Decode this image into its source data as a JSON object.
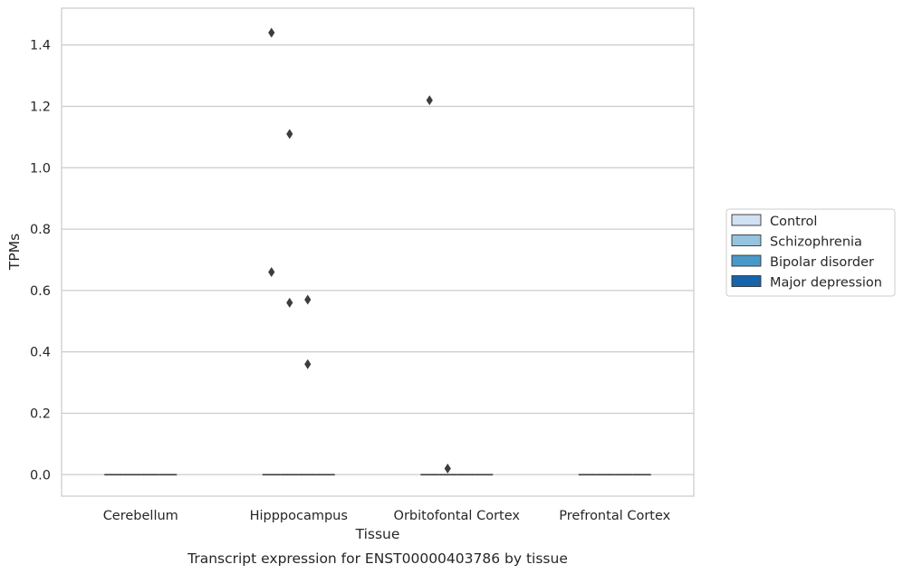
{
  "chart_data": {
    "type": "boxplot",
    "xlabel": "Tissue",
    "ylabel": "TPMs",
    "caption": "Transcript expression for ENST00000403786 by tissue",
    "categories": [
      "Cerebellum",
      "Hipppocampus",
      "Orbitofontal Cortex",
      "Prefrontal Cortex"
    ],
    "ylim": [
      -0.07,
      1.52
    ],
    "yticks": [
      "0.0",
      "0.2",
      "0.4",
      "0.6",
      "0.8",
      "1.0",
      "1.2",
      "1.4"
    ],
    "grid": "horizontal",
    "legend_position": "right",
    "series": [
      {
        "name": "Control",
        "color": "#d0e1f2"
      },
      {
        "name": "Schizophrenia",
        "color": "#94c4df"
      },
      {
        "name": "Bipolar disorder",
        "color": "#4a98c9"
      },
      {
        "name": "Major depression",
        "color": "#1764ab"
      }
    ],
    "boxes": [
      {
        "category": 0,
        "series": 0,
        "median": 0.0
      },
      {
        "category": 0,
        "series": 1,
        "median": 0.0
      },
      {
        "category": 0,
        "series": 2,
        "median": 0.0
      },
      {
        "category": 0,
        "series": 3,
        "median": 0.0
      },
      {
        "category": 1,
        "series": 0,
        "median": 0.0,
        "outliers": [
          1.44,
          0.66
        ]
      },
      {
        "category": 1,
        "series": 1,
        "median": 0.0,
        "outliers": [
          1.11,
          0.56
        ]
      },
      {
        "category": 1,
        "series": 2,
        "median": 0.0,
        "outliers": [
          0.57,
          0.36
        ]
      },
      {
        "category": 1,
        "series": 3,
        "median": 0.0
      },
      {
        "category": 2,
        "series": 0,
        "median": 0.0,
        "outliers": [
          1.22
        ]
      },
      {
        "category": 2,
        "series": 1,
        "median": 0.0,
        "outliers": [
          0.02
        ]
      },
      {
        "category": 2,
        "series": 2,
        "median": 0.0
      },
      {
        "category": 2,
        "series": 3,
        "median": 0.0
      },
      {
        "category": 3,
        "series": 0,
        "median": 0.0
      },
      {
        "category": 3,
        "series": 1,
        "median": 0.0
      },
      {
        "category": 3,
        "series": 2,
        "median": 0.0
      },
      {
        "category": 3,
        "series": 3,
        "median": 0.0
      }
    ]
  }
}
